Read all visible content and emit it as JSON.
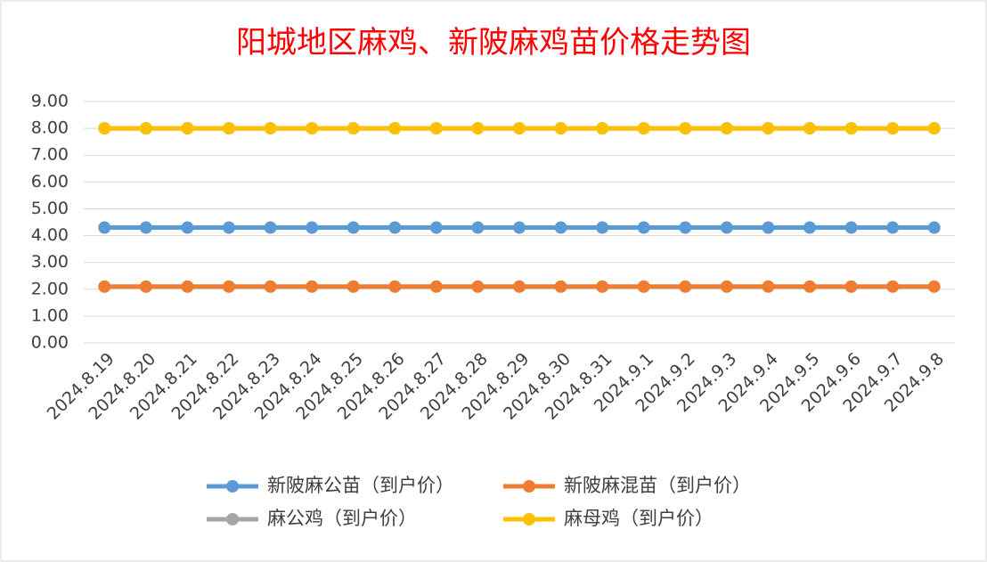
{
  "chart_data": {
    "type": "line",
    "title": "阳城地区麻鸡、新陂麻鸡苗价格走势图",
    "categories": [
      "2024.8.19",
      "2024.8.20",
      "2024.8.21",
      "2024.8.22",
      "2024.8.23",
      "2024.8.24",
      "2024.8.25",
      "2024.8.26",
      "2024.8.27",
      "2024.8.28",
      "2024.8.29",
      "2024.8.30",
      "2024.8.31",
      "2024.9.1",
      "2024.9.2",
      "2024.9.3",
      "2024.9.4",
      "2024.9.5",
      "2024.9.6",
      "2024.9.7",
      "2024.9.8"
    ],
    "series": [
      {
        "name": "新陂麻公苗（到户价）",
        "color": "#5b9bd5",
        "values": [
          4.3,
          4.3,
          4.3,
          4.3,
          4.3,
          4.3,
          4.3,
          4.3,
          4.3,
          4.3,
          4.3,
          4.3,
          4.3,
          4.3,
          4.3,
          4.3,
          4.3,
          4.3,
          4.3,
          4.3,
          4.3
        ]
      },
      {
        "name": "新陂麻混苗（到户价）",
        "color": "#ed7d31",
        "values": [
          2.1,
          2.1,
          2.1,
          2.1,
          2.1,
          2.1,
          2.1,
          2.1,
          2.1,
          2.1,
          2.1,
          2.1,
          2.1,
          2.1,
          2.1,
          2.1,
          2.1,
          2.1,
          2.1,
          2.1,
          2.1
        ]
      },
      {
        "name": "麻公鸡（到户价）",
        "color": "#a5a5a5",
        "values": [
          8,
          8,
          8,
          8,
          8,
          8,
          8,
          8,
          8,
          8,
          8,
          8,
          8,
          8,
          8,
          8,
          8,
          8,
          8,
          8,
          8
        ]
      },
      {
        "name": "麻母鸡（到户价）",
        "color": "#ffc000",
        "values": [
          8,
          8,
          8,
          8,
          8,
          8,
          8,
          8,
          8,
          8,
          8,
          8,
          8,
          8,
          8,
          8,
          8,
          8,
          8,
          8,
          8
        ]
      }
    ],
    "ylim": [
      0,
      9
    ],
    "yticks": [
      {
        "value": 0,
        "label": "0.00"
      },
      {
        "value": 1,
        "label": "1.00"
      },
      {
        "value": 2,
        "label": "2.00"
      },
      {
        "value": 3,
        "label": "3.00"
      },
      {
        "value": 4,
        "label": "4.00"
      },
      {
        "value": 5,
        "label": "5.00"
      },
      {
        "value": 6,
        "label": "6.00"
      },
      {
        "value": 7,
        "label": "7.00"
      },
      {
        "value": 8,
        "label": "8.00"
      },
      {
        "value": 9,
        "label": "9.00"
      }
    ],
    "grid": true,
    "legend": "bottom"
  }
}
